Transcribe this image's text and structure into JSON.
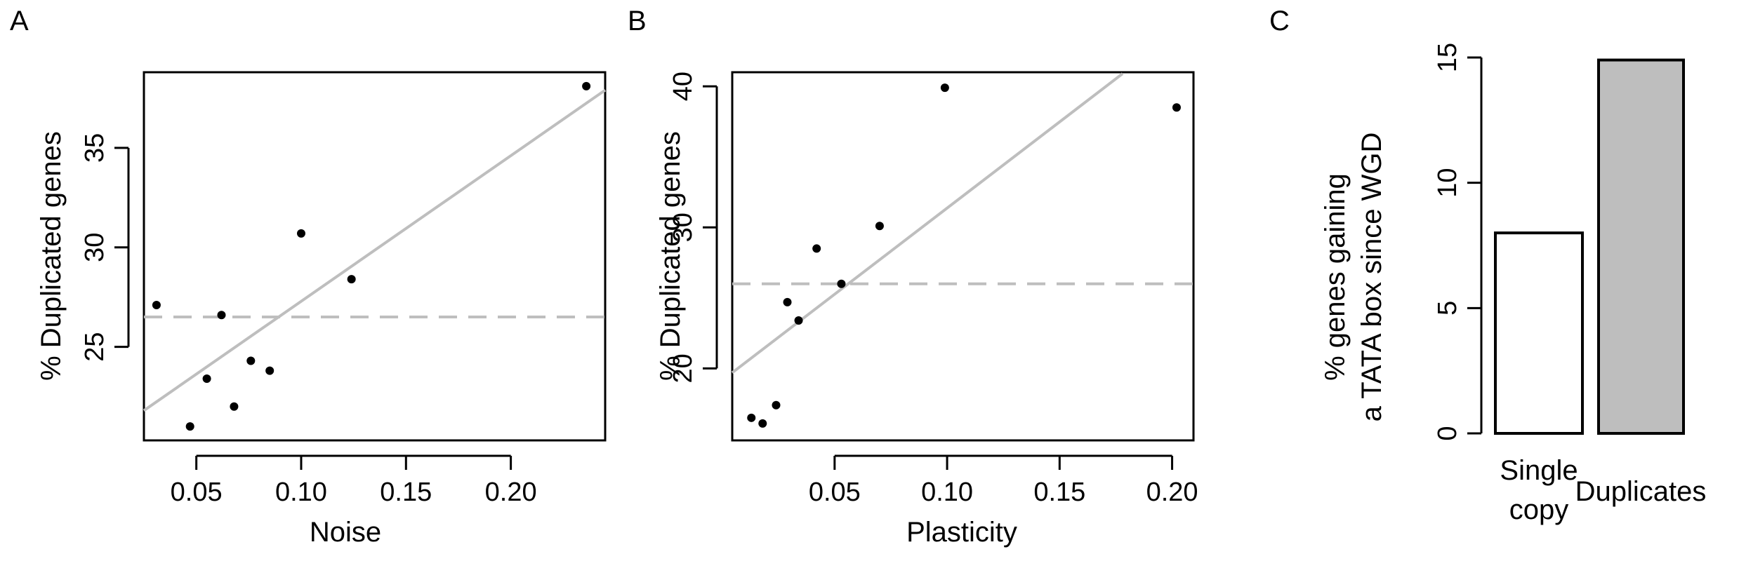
{
  "chart_data": [
    {
      "panel": "A",
      "type": "scatter",
      "xlabel": "Noise",
      "ylabel": "% Duplicated genes",
      "xlim": [
        0.025,
        0.245
      ],
      "ylim": [
        20.3,
        38.8
      ],
      "xticks": [
        0.05,
        0.1,
        0.15,
        0.2
      ],
      "xtick_labels": [
        "0.05",
        "0.10",
        "0.15",
        "0.20"
      ],
      "yticks": [
        25,
        30,
        35
      ],
      "ytick_labels": [
        "25",
        "30",
        "35"
      ],
      "points": [
        {
          "x": 0.031,
          "y": 27.1
        },
        {
          "x": 0.047,
          "y": 21.0
        },
        {
          "x": 0.055,
          "y": 23.4
        },
        {
          "x": 0.062,
          "y": 26.6
        },
        {
          "x": 0.068,
          "y": 22.0
        },
        {
          "x": 0.076,
          "y": 24.3
        },
        {
          "x": 0.085,
          "y": 23.8
        },
        {
          "x": 0.1,
          "y": 30.7
        },
        {
          "x": 0.124,
          "y": 28.4
        },
        {
          "x": 0.236,
          "y": 38.1
        }
      ],
      "fit_line": {
        "x1": 0.025,
        "y1": 21.8,
        "x2": 0.245,
        "y2": 37.9,
        "color": "#bebebe"
      },
      "mean_line": {
        "y": 26.5,
        "color": "#bebebe",
        "style": "dashed"
      },
      "grid": false
    },
    {
      "panel": "B",
      "type": "scatter",
      "xlabel": "Plasticity",
      "ylabel": "% Duplicated genes",
      "xlim": [
        0.0045,
        0.2095
      ],
      "ylim": [
        14.9,
        41.0
      ],
      "xticks": [
        0.05,
        0.1,
        0.15,
        0.2
      ],
      "xtick_labels": [
        "0.05",
        "0.10",
        "0.15",
        "0.20"
      ],
      "yticks": [
        20,
        30,
        40
      ],
      "ytick_labels": [
        "20",
        "30",
        "40"
      ],
      "points": [
        {
          "x": 0.013,
          "y": 16.5
        },
        {
          "x": 0.018,
          "y": 16.1
        },
        {
          "x": 0.024,
          "y": 17.4
        },
        {
          "x": 0.029,
          "y": 24.7
        },
        {
          "x": 0.034,
          "y": 23.4
        },
        {
          "x": 0.042,
          "y": 28.5
        },
        {
          "x": 0.053,
          "y": 26.0
        },
        {
          "x": 0.07,
          "y": 30.1
        },
        {
          "x": 0.099,
          "y": 39.9
        },
        {
          "x": 0.202,
          "y": 38.5
        }
      ],
      "fit_line": {
        "x1": 0.0045,
        "y1": 19.7,
        "x2": 0.178,
        "y2": 40.9,
        "color": "#bebebe"
      },
      "mean_line": {
        "y": 26.0,
        "color": "#bebebe",
        "style": "dashed"
      },
      "grid": false
    },
    {
      "panel": "C",
      "type": "bar",
      "ylabel_lines": [
        "% genes gaining",
        "a TATA box since WGD"
      ],
      "ylim": [
        0,
        15
      ],
      "yticks": [
        0,
        5,
        10,
        15
      ],
      "ytick_labels": [
        "0",
        "5",
        "10",
        "15"
      ],
      "categories": [
        [
          "Single",
          "copy"
        ],
        [
          "Duplicates"
        ]
      ],
      "values": [
        8.0,
        14.9
      ],
      "bar_colors": [
        "#ffffff",
        "#bebebe"
      ],
      "grid": false
    }
  ]
}
